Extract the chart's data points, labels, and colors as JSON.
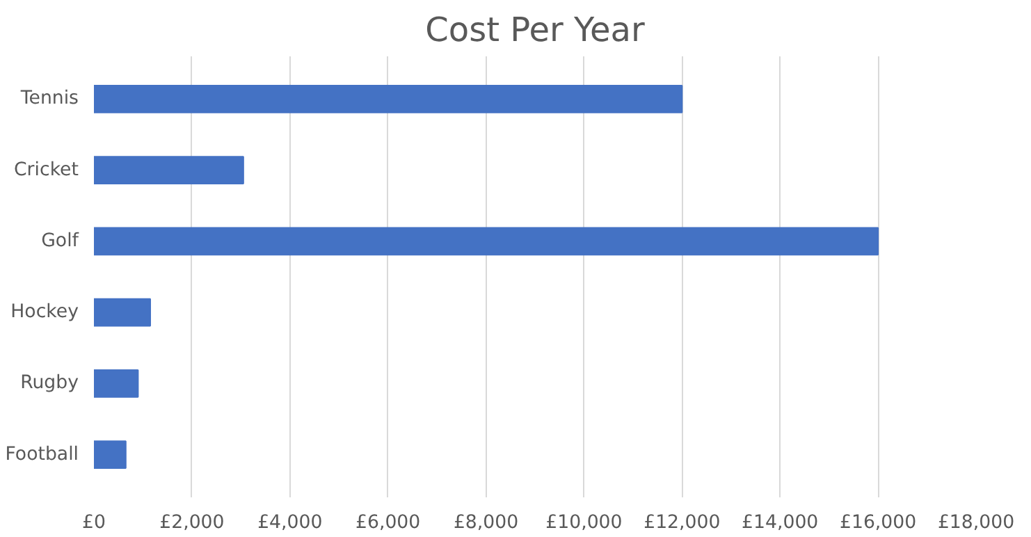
{
  "chart_data": {
    "type": "bar",
    "orientation": "horizontal",
    "title": "Cost Per Year",
    "categories": [
      "Tennis",
      "Cricket",
      "Golf",
      "Hockey",
      "Rugby",
      "Football"
    ],
    "values": [
      12000,
      3050,
      16000,
      1150,
      900,
      650
    ],
    "color": "#4472c4",
    "xlim": [
      0,
      18000
    ],
    "xticks": [
      {
        "value": 0,
        "label": "£0"
      },
      {
        "value": 2000,
        "label": "£2,000"
      },
      {
        "value": 4000,
        "label": "£4,000"
      },
      {
        "value": 6000,
        "label": "£6,000"
      },
      {
        "value": 8000,
        "label": "£8,000"
      },
      {
        "value": 10000,
        "label": "£10,000"
      },
      {
        "value": 12000,
        "label": "£12,000"
      },
      {
        "value": 14000,
        "label": "£14,000"
      },
      {
        "value": 16000,
        "label": "£16,000"
      },
      {
        "value": 18000,
        "label": "£18,000"
      }
    ],
    "grid": "x"
  }
}
